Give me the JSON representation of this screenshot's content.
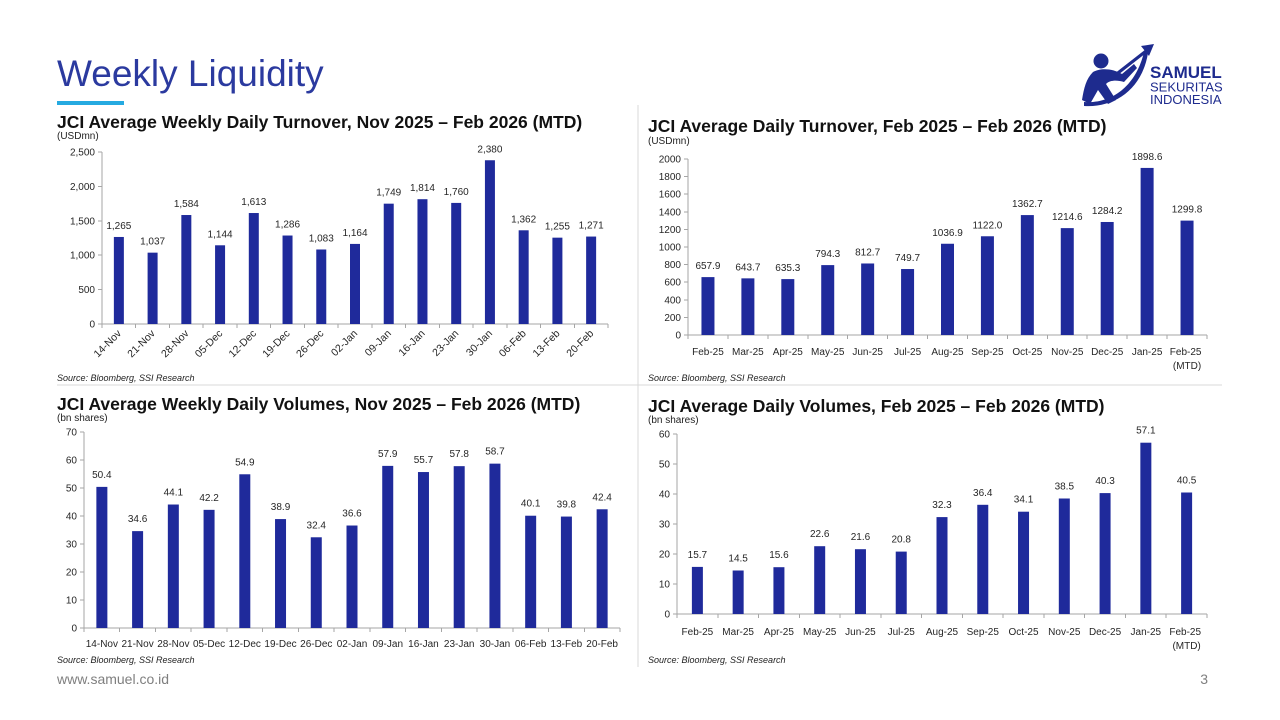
{
  "slide": {
    "title": "Weekly Liquidity",
    "title_color": "#2B3A9F",
    "accent_color": "#25AAE1",
    "logo": {
      "icon": "archer-logo-icon",
      "color": "#1E2B8E",
      "name": "SAMUEL",
      "line2": "SEKURITAS",
      "line3": "INDONESIA"
    },
    "footer": {
      "website": "www.samuel.co.id",
      "page_number": "3"
    }
  },
  "chart_data": [
    {
      "type": "bar",
      "title": "JCI Average Weekly Daily Turnover, Nov 2025 – Feb 2026 (MTD)",
      "ylabel": "(USDmn)",
      "xlabel": "",
      "categories": [
        "14-Nov",
        "21-Nov",
        "28-Nov",
        "05-Dec",
        "12-Dec",
        "19-Dec",
        "26-Dec",
        "02-Jan",
        "09-Jan",
        "16-Jan",
        "23-Jan",
        "30-Jan",
        "06-Feb",
        "13-Feb",
        "20-Feb"
      ],
      "values": [
        1265,
        1037,
        1584,
        1144,
        1613,
        1286,
        1083,
        1164,
        1749,
        1814,
        1760,
        2380,
        1362,
        1255,
        1271
      ],
      "ylim": [
        0,
        2500
      ],
      "yticks": [
        0,
        500,
        1000,
        1500,
        2000,
        2500
      ],
      "ytick_format": "#,##0",
      "value_format": "#,##0",
      "data_labels": true,
      "bar_color": "#1F2A9B",
      "grid": false,
      "legend": "none",
      "source": "Source: Bloomberg, SSI Research"
    },
    {
      "type": "bar",
      "title": "JCI Average Daily Turnover, Feb 2025 – Feb 2026 (MTD)",
      "ylabel": "(USDmn)",
      "xlabel": "",
      "categories": [
        "Feb-25",
        "Mar-25",
        "Apr-25",
        "May-25",
        "Jun-25",
        "Jul-25",
        "Aug-25",
        "Sep-25",
        "Oct-25",
        "Nov-25",
        "Dec-25",
        "Jan-25",
        "Feb-25 (MTD)"
      ],
      "values": [
        657.9,
        643.7,
        635.3,
        794.3,
        812.7,
        749.7,
        1036.9,
        1122.0,
        1362.7,
        1214.6,
        1284.2,
        1898.6,
        1299.8
      ],
      "ylim": [
        0,
        2000
      ],
      "yticks": [
        0,
        200,
        400,
        600,
        800,
        1000,
        1200,
        1400,
        1600,
        1800,
        2000
      ],
      "ytick_format": "0",
      "value_format": "0.0",
      "data_labels": true,
      "bar_color": "#1F2A9B",
      "grid": false,
      "legend": "none",
      "source": "Source: Bloomberg, SSI Research"
    },
    {
      "type": "bar",
      "title": "JCI Average Weekly Daily Volumes, Nov 2025 – Feb 2026 (MTD)",
      "ylabel": "(bn shares)",
      "xlabel": "",
      "categories": [
        "14-Nov",
        "21-Nov",
        "28-Nov",
        "05-Dec",
        "12-Dec",
        "19-Dec",
        "26-Dec",
        "02-Jan",
        "09-Jan",
        "16-Jan",
        "23-Jan",
        "30-Jan",
        "06-Feb",
        "13-Feb",
        "20-Feb"
      ],
      "values": [
        50.4,
        34.6,
        44.1,
        42.2,
        54.9,
        38.9,
        32.4,
        36.6,
        57.9,
        55.7,
        57.8,
        58.7,
        40.1,
        39.8,
        42.4
      ],
      "ylim": [
        0,
        70
      ],
      "yticks": [
        0,
        10,
        20,
        30,
        40,
        50,
        60,
        70
      ],
      "ytick_format": "0",
      "value_format": "0.0",
      "data_labels": true,
      "bar_color": "#1F2A9B",
      "grid": false,
      "legend": "none",
      "source": "Source: Bloomberg, SSI Research"
    },
    {
      "type": "bar",
      "title": "JCI Average Daily Volumes, Feb 2025 – Feb 2026 (MTD)",
      "ylabel": "(bn shares)",
      "xlabel": "",
      "categories": [
        "Feb-25",
        "Mar-25",
        "Apr-25",
        "May-25",
        "Jun-25",
        "Jul-25",
        "Aug-25",
        "Sep-25",
        "Oct-25",
        "Nov-25",
        "Dec-25",
        "Jan-25",
        "Feb-25 (MTD)"
      ],
      "values": [
        15.7,
        14.5,
        15.6,
        22.6,
        21.6,
        20.8,
        32.3,
        36.4,
        34.1,
        38.5,
        40.3,
        57.1,
        40.5
      ],
      "ylim": [
        0,
        60
      ],
      "yticks": [
        0,
        10,
        20,
        30,
        40,
        50,
        60
      ],
      "ytick_format": "0",
      "value_format": "0.0",
      "data_labels": true,
      "bar_color": "#1F2A9B",
      "grid": false,
      "legend": "none",
      "source": "Source: Bloomberg, SSI Research"
    }
  ]
}
